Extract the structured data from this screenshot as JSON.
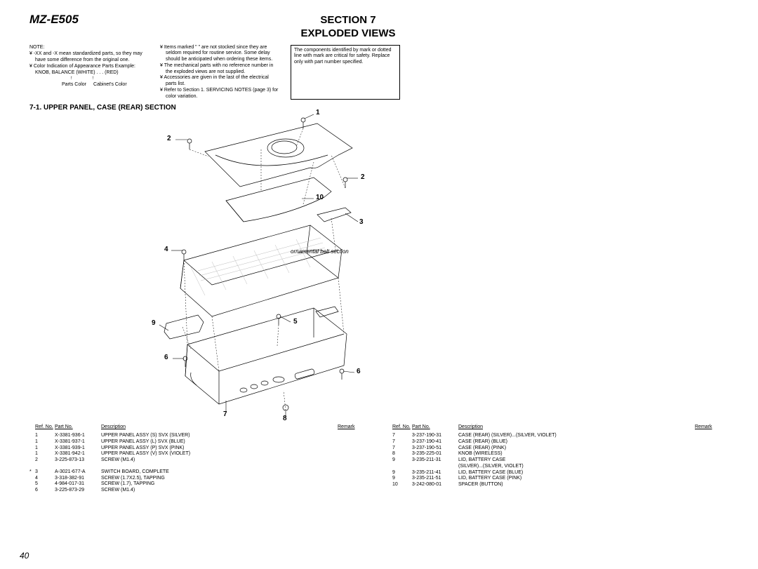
{
  "header": {
    "model": "MZ-E505",
    "section_line1": "SECTION 7",
    "section_line2": "EXPLODED VIEWS"
  },
  "notes": {
    "label": "NOTE:",
    "col1": [
      "¥  -XX and -X mean standardized parts, so they may have some difference from the original one.",
      "¥  Color Indication of Appearance Parts Example:",
      "KNOB, BALANCE (WHITE) . . . (RED)"
    ],
    "arrows": {
      "parts": "Parts Color",
      "cabinet": "Cabinet's Color"
    },
    "col2": [
      "¥  Items marked \"  \" are not stocked since they are seldom required for routine service. Some delay should be anticipated when ordering these items.",
      "¥  The mechanical parts with no reference number in the exploded views are not supplied.",
      "¥  Accessories are given in the last of the electrical parts list.",
      "¥  Refer to Section 1. SERVICING NOTES (page 3) for color variation."
    ],
    "box": "The components identified by mark      or dotted line with mark      are critical for safety. Replace only with part number specified."
  },
  "subsection": "7-1. UPPER PANEL, CASE (REAR) SECTION",
  "ornament_label": "ornamental belt section",
  "callouts": [
    "1",
    "2",
    "2",
    "10",
    "3",
    "4",
    "9",
    "5",
    "6",
    "6",
    "7",
    "8"
  ],
  "table": {
    "headers": {
      "ref": "Ref. No.",
      "part": "Part No.",
      "desc": "Description",
      "rem": "Remark"
    },
    "left": [
      {
        "s": "",
        "r": "1",
        "p": "X-3381-936-1",
        "d": "UPPER PANEL ASSY (S) SVX (SILVER)"
      },
      {
        "s": "",
        "r": "1",
        "p": "X-3381-937-1",
        "d": "UPPER PANEL ASSY (L) SVX (BLUE)"
      },
      {
        "s": "",
        "r": "1",
        "p": "X-3381-939-1",
        "d": "UPPER PANEL ASSY (P) SVX (PINK)"
      },
      {
        "s": "",
        "r": "1",
        "p": "X-3381-942-1",
        "d": "UPPER PANEL ASSY (V) SVX (VIOLET)"
      },
      {
        "s": "",
        "r": "2",
        "p": "3-225-873-13",
        "d": "SCREW (M1.4)"
      },
      {
        "gap": true
      },
      {
        "s": "*",
        "r": "3",
        "p": "A-3021-677-A",
        "d": "SWITCH BOARD, COMPLETE"
      },
      {
        "s": "",
        "r": "4",
        "p": "3-318-382-91",
        "d": "SCREW (1.7X2.5), TAPPING"
      },
      {
        "s": "",
        "r": "5",
        "p": "4-984-017-31",
        "d": "SCREW (1.7), TAPPING"
      },
      {
        "s": "",
        "r": "6",
        "p": "3-225-873-29",
        "d": "SCREW (M1.4)"
      }
    ],
    "right": [
      {
        "s": "",
        "r": "7",
        "p": "3-237-190-31",
        "d": "CASE (REAR) (SILVER)...(SILVER, VIOLET)"
      },
      {
        "s": "",
        "r": "7",
        "p": "3-237-190-41",
        "d": "CASE (REAR) (BLUE)"
      },
      {
        "s": "",
        "r": "7",
        "p": "3-237-190-51",
        "d": "CASE (REAR) (PINK)"
      },
      {
        "s": "",
        "r": "8",
        "p": "3-235-225-01",
        "d": "KNOB (WIRELESS)"
      },
      {
        "s": "",
        "r": "9",
        "p": "3-235-211-31",
        "d": "LID, BATTERY CASE"
      },
      {
        "s": "",
        "r": "",
        "p": "",
        "d": "(SILVER)...(SILVER, VIOLET)"
      },
      {
        "s": "",
        "r": "9",
        "p": "3-235-211-41",
        "d": "LID, BATTERY CASE (BLUE)"
      },
      {
        "s": "",
        "r": "9",
        "p": "3-235-211-51",
        "d": "LID, BATTERY CASE (PINK)"
      },
      {
        "s": "",
        "r": "10",
        "p": "3-242-080-01",
        "d": "SPACER (BUTTON)"
      }
    ]
  },
  "pagenum": "40",
  "styling": {
    "stroke": "#000000",
    "stroke_width": 0.7,
    "hatch_stroke": "#bdbdbd",
    "background": "#ffffff",
    "heading_font_size": 15,
    "body_font_size": 7
  }
}
